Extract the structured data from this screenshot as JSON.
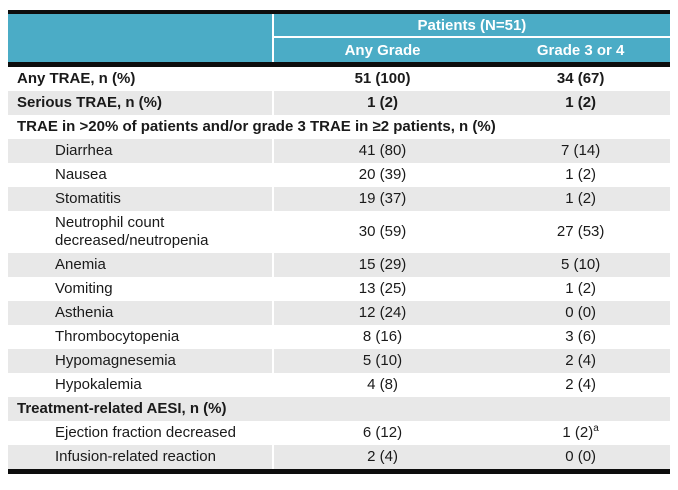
{
  "header": {
    "group_label": "Patients (N=51)",
    "col_any_grade": "Any Grade",
    "col_grade_3_4": "Grade 3 or 4"
  },
  "rows": [
    {
      "label": "Any TRAE, n (%)",
      "any_grade": "51 (100)",
      "grade_3_4": "34 (67)"
    },
    {
      "label": "Serious TRAE, n (%)",
      "any_grade": "1 (2)",
      "grade_3_4": "1 (2)"
    },
    {
      "label": "TRAE in >20% of patients and/or grade 3 TRAE in ≥2 patients, n (%)"
    },
    {
      "label": "Diarrhea",
      "any_grade": "41 (80)",
      "grade_3_4": "7 (14)"
    },
    {
      "label": "Nausea",
      "any_grade": "20 (39)",
      "grade_3_4": "1 (2)"
    },
    {
      "label": "Stomatitis",
      "any_grade": "19 (37)",
      "grade_3_4": "1 (2)"
    },
    {
      "label": "Neutrophil count decreased/neutropenia",
      "any_grade": "30 (59)",
      "grade_3_4": "27 (53)"
    },
    {
      "label": "Anemia",
      "any_grade": "15 (29)",
      "grade_3_4": "5 (10)"
    },
    {
      "label": "Vomiting",
      "any_grade": "13 (25)",
      "grade_3_4": "1 (2)"
    },
    {
      "label": "Asthenia",
      "any_grade": "12 (24)",
      "grade_3_4": "0 (0)"
    },
    {
      "label": "Thrombocytopenia",
      "any_grade": "8 (16)",
      "grade_3_4": "3 (6)"
    },
    {
      "label": "Hypomagnesemia",
      "any_grade": "5 (10)",
      "grade_3_4": "2 (4)"
    },
    {
      "label": "Hypokalemia",
      "any_grade": "4 (8)",
      "grade_3_4": "2 (4)"
    },
    {
      "label": "Treatment-related AESI, n (%)"
    },
    {
      "label": "Ejection fraction decreased",
      "any_grade": "6 (12)",
      "grade_3_4": "1 (2)",
      "footnote_marker": "a"
    },
    {
      "label": "Infusion-related reaction",
      "any_grade": "2 (4)",
      "grade_3_4": "0 (0)"
    }
  ],
  "colors": {
    "header_teal": "#4BACC6",
    "header_text": "#ffffff",
    "row_shade_gray": "#E8E8E8",
    "rule_black": "#0d0d0d"
  }
}
